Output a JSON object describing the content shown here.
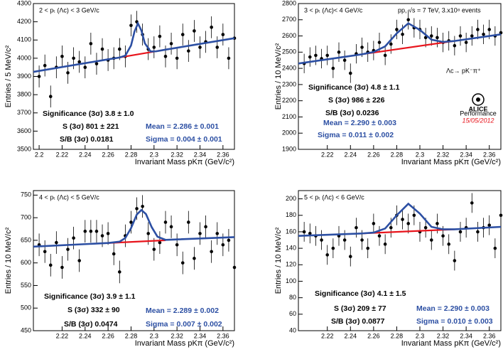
{
  "chart_data": [
    {
      "type": "scatter",
      "title": "2 < pₜ (Λc) < 3 GeV/c",
      "x_label": "Invariant Mass pKπ (GeV/c²)",
      "y_label": "Entries / 5 MeV/c²",
      "xlim": [
        2.195,
        2.37
      ],
      "ylim": [
        3500,
        4300
      ],
      "xticks": [
        2.2,
        2.22,
        2.24,
        2.26,
        2.28,
        2.3,
        2.32,
        2.34,
        2.36
      ],
      "yticks": [
        3500,
        3600,
        3700,
        3800,
        3900,
        4000,
        4100,
        4200,
        4300
      ],
      "color": "#000000",
      "x": [
        2.2,
        2.205,
        2.21,
        2.215,
        2.22,
        2.225,
        2.23,
        2.235,
        2.24,
        2.245,
        2.25,
        2.255,
        2.26,
        2.265,
        2.27,
        2.275,
        2.28,
        2.285,
        2.29,
        2.295,
        2.3,
        2.305,
        2.31,
        2.315,
        2.32,
        2.325,
        2.33,
        2.335,
        2.34,
        2.345,
        2.35,
        2.355,
        2.36,
        2.365,
        2.37
      ],
      "values": [
        3900,
        3960,
        3790,
        3950,
        4010,
        3920,
        4000,
        3980,
        3950,
        4080,
        3970,
        4050,
        3990,
        4000,
        4050,
        4010,
        4180,
        4200,
        4130,
        4050,
        4060,
        4120,
        4010,
        4080,
        4000,
        4130,
        4040,
        4150,
        4060,
        4090,
        4170,
        4060,
        4130,
        4000,
        4110
      ],
      "errors": [
        60,
        60,
        60,
        60,
        60,
        60,
        60,
        60,
        60,
        60,
        60,
        60,
        60,
        60,
        60,
        60,
        60,
        60,
        60,
        60,
        60,
        60,
        60,
        60,
        60,
        60,
        60,
        60,
        60,
        60,
        60,
        60,
        60,
        60,
        60
      ],
      "fit": {
        "color": "#2c4fa3",
        "x": [
          2.195,
          2.26,
          2.27,
          2.275,
          2.28,
          2.283,
          2.286,
          2.289,
          2.292,
          2.297,
          2.302,
          2.31,
          2.37
        ],
        "values": [
          3925,
          3994,
          4004,
          4014,
          4070,
          4146,
          4191,
          4152,
          4082,
          4037,
          4038,
          4047,
          4110
        ]
      },
      "background": {
        "color": "#e8141c",
        "x": [
          2.27,
          2.31
        ],
        "values": [
          4004,
          4047
        ]
      },
      "stats": {
        "significance": "Significance (3σ) 3.8 ± 1.0",
        "s": "S (3σ) 801 ± 221",
        "sb": "S/B (3σ) 0.0181",
        "mean": "Mean = 2.286 ± 0.001",
        "sigma": "Sigma = 0.004 ± 0.001"
      }
    },
    {
      "type": "scatter",
      "title": "3 < pₜ (Λc)< 4 GeV/c",
      "x_label": "Invariant Mass pKπ (GeV/c²)",
      "y_label": "Entries / 10 MeV/c²",
      "xlim": [
        2.195,
        2.37
      ],
      "ylim": [
        1900,
        2800
      ],
      "xticks": [
        2.22,
        2.24,
        2.26,
        2.28,
        2.3,
        2.32,
        2.34,
        2.36
      ],
      "yticks": [
        1900,
        2000,
        2100,
        2200,
        2300,
        2400,
        2500,
        2600,
        2700,
        2800
      ],
      "color": "#000000",
      "x": [
        2.2,
        2.205,
        2.21,
        2.215,
        2.22,
        2.225,
        2.23,
        2.235,
        2.24,
        2.245,
        2.25,
        2.255,
        2.26,
        2.265,
        2.27,
        2.275,
        2.28,
        2.285,
        2.29,
        2.295,
        2.3,
        2.305,
        2.31,
        2.315,
        2.32,
        2.325,
        2.33,
        2.335,
        2.34,
        2.345,
        2.35,
        2.355,
        2.36,
        2.365,
        2.37
      ],
      "values": [
        2430,
        2470,
        2480,
        2460,
        2480,
        2400,
        2500,
        2450,
        2370,
        2490,
        2530,
        2500,
        2510,
        2560,
        2480,
        2550,
        2640,
        2610,
        2700,
        2650,
        2640,
        2590,
        2600,
        2590,
        2560,
        2570,
        2540,
        2600,
        2560,
        2600,
        2640,
        2610,
        2640,
        2600,
        2620
      ],
      "errors": [
        60,
        60,
        60,
        60,
        60,
        60,
        60,
        60,
        60,
        60,
        60,
        60,
        60,
        60,
        60,
        60,
        60,
        60,
        60,
        60,
        60,
        60,
        60,
        60,
        60,
        60,
        60,
        60,
        60,
        60,
        60,
        60,
        60,
        60,
        60
      ],
      "fit": {
        "color": "#2c4fa3",
        "x": [
          2.195,
          2.25,
          2.26,
          2.27,
          2.28,
          2.29,
          2.3,
          2.31,
          2.32,
          2.33,
          2.37
        ],
        "values": [
          2430,
          2487,
          2501,
          2536,
          2616,
          2678,
          2637,
          2577,
          2563,
          2569,
          2610
        ]
      },
      "background": {
        "color": "#e8141c",
        "x": [
          2.25,
          2.33
        ],
        "values": [
          2487,
          2569
        ]
      },
      "stats": {
        "significance": "Significance (3σ) 4.8 ± 1.1",
        "s": "S (3σ) 986 ± 226",
        "sb": "S/B (3σ) 0.0236",
        "mean": "Mean = 2.290 ± 0.003",
        "sigma": "Sigma = 0.011 ± 0.002"
      },
      "extra": {
        "collision": "pp, √s = 7 TeV, 3.x10⁸ events",
        "decay": "Λc→ pK⁻π⁺",
        "logo": "ALICE",
        "logo_sub": "Performance",
        "date": "15/05/2012"
      }
    },
    {
      "type": "scatter",
      "title": "4 < pₜ (Λc) < 5 GeV/c",
      "x_label": "Invariant Mass pKπ (GeV/c²)",
      "y_label": "Entries / 10 MeV/c²",
      "xlim": [
        2.195,
        2.37
      ],
      "ylim": [
        450,
        760
      ],
      "xticks": [
        2.22,
        2.24,
        2.26,
        2.28,
        2.3,
        2.32,
        2.34,
        2.36
      ],
      "yticks": [
        450,
        500,
        550,
        600,
        650,
        700,
        750
      ],
      "color": "#000000",
      "x": [
        2.2,
        2.205,
        2.21,
        2.215,
        2.22,
        2.225,
        2.23,
        2.235,
        2.24,
        2.245,
        2.25,
        2.255,
        2.26,
        2.265,
        2.27,
        2.275,
        2.28,
        2.285,
        2.29,
        2.295,
        2.3,
        2.305,
        2.31,
        2.315,
        2.32,
        2.325,
        2.33,
        2.335,
        2.34,
        2.345,
        2.35,
        2.355,
        2.36,
        2.365,
        2.37
      ],
      "values": [
        640,
        625,
        595,
        645,
        590,
        630,
        655,
        605,
        670,
        670,
        670,
        660,
        665,
        620,
        580,
        660,
        690,
        720,
        725,
        665,
        630,
        645,
        690,
        680,
        640,
        600,
        690,
        610,
        665,
        680,
        625,
        665,
        640,
        650,
        590
      ],
      "errors": [
        25,
        25,
        25,
        25,
        25,
        25,
        25,
        25,
        25,
        25,
        25,
        25,
        25,
        25,
        25,
        25,
        25,
        25,
        25,
        25,
        25,
        25,
        25,
        25,
        25,
        25,
        25,
        25,
        25,
        25,
        25,
        25,
        25,
        25,
        25
      ],
      "fit": {
        "color": "#2c4fa3",
        "x": [
          2.195,
          2.26,
          2.27,
          2.275,
          2.28,
          2.285,
          2.289,
          2.293,
          2.298,
          2.303,
          2.31,
          2.37
        ],
        "values": [
          636,
          644,
          647,
          655,
          677,
          707,
          717,
          708,
          679,
          658,
          651,
          657
        ]
      },
      "background": {
        "color": "#e8141c",
        "x": [
          2.26,
          2.31
        ],
        "values": [
          644,
          650
        ]
      },
      "stats": {
        "significance": "Significance (3σ) 3.9 ± 1.1",
        "s": "S (3σ) 332 ± 90",
        "sb": "S/B (3σ) 0.0474",
        "mean": "Mean = 2.289 ± 0.002",
        "sigma": "Sigma = 0.007 ± 0.002"
      }
    },
    {
      "type": "scatter",
      "title": "5 < pₜ (Λc) < 6 GeV/c",
      "x_label": "Invariant Mass pKπ (GeV/c²)",
      "y_label": "Entries / 10 MeV/c²",
      "xlim": [
        2.195,
        2.37
      ],
      "ylim": [
        40,
        210
      ],
      "xticks": [
        2.22,
        2.24,
        2.26,
        2.28,
        2.3,
        2.32,
        2.34,
        2.36
      ],
      "yticks": [
        40,
        60,
        80,
        100,
        120,
        140,
        160,
        180,
        200
      ],
      "color": "#000000",
      "x": [
        2.2,
        2.205,
        2.21,
        2.215,
        2.22,
        2.225,
        2.23,
        2.235,
        2.24,
        2.245,
        2.25,
        2.255,
        2.26,
        2.265,
        2.27,
        2.275,
        2.28,
        2.285,
        2.29,
        2.295,
        2.3,
        2.305,
        2.31,
        2.315,
        2.32,
        2.325,
        2.33,
        2.335,
        2.34,
        2.345,
        2.35,
        2.355,
        2.36,
        2.365,
        2.37
      ],
      "values": [
        160,
        158,
        155,
        150,
        132,
        140,
        155,
        150,
        130,
        165,
        150,
        140,
        170,
        155,
        145,
        165,
        180,
        175,
        170,
        180,
        160,
        165,
        150,
        170,
        155,
        145,
        125,
        160,
        165,
        195,
        160,
        165,
        168,
        140,
        180
      ],
      "errors": [
        12,
        12,
        12,
        12,
        12,
        12,
        12,
        12,
        12,
        12,
        12,
        12,
        12,
        12,
        12,
        12,
        12,
        12,
        12,
        12,
        12,
        12,
        12,
        12,
        12,
        12,
        12,
        12,
        12,
        12,
        12,
        12,
        12,
        12,
        12
      ],
      "fit": {
        "color": "#2c4fa3",
        "x": [
          2.195,
          2.25,
          2.26,
          2.27,
          2.28,
          2.29,
          2.3,
          2.31,
          2.32,
          2.33,
          2.37
        ],
        "values": [
          155,
          158,
          159,
          164,
          180,
          194,
          182,
          166,
          163,
          163,
          166
        ]
      },
      "background": {
        "color": "#e8141c",
        "x": [
          2.25,
          2.33
        ],
        "values": [
          158,
          163
        ]
      },
      "stats": {
        "significance": "Significance (3σ) 4.1 ± 1.5",
        "s": "S (3σ) 209 ± 77",
        "sb": "S/B (3σ) 0.0877",
        "mean": "Mean = 2.290 ± 0.003",
        "sigma": "Sigma = 0.010 ± 0.003"
      }
    }
  ]
}
